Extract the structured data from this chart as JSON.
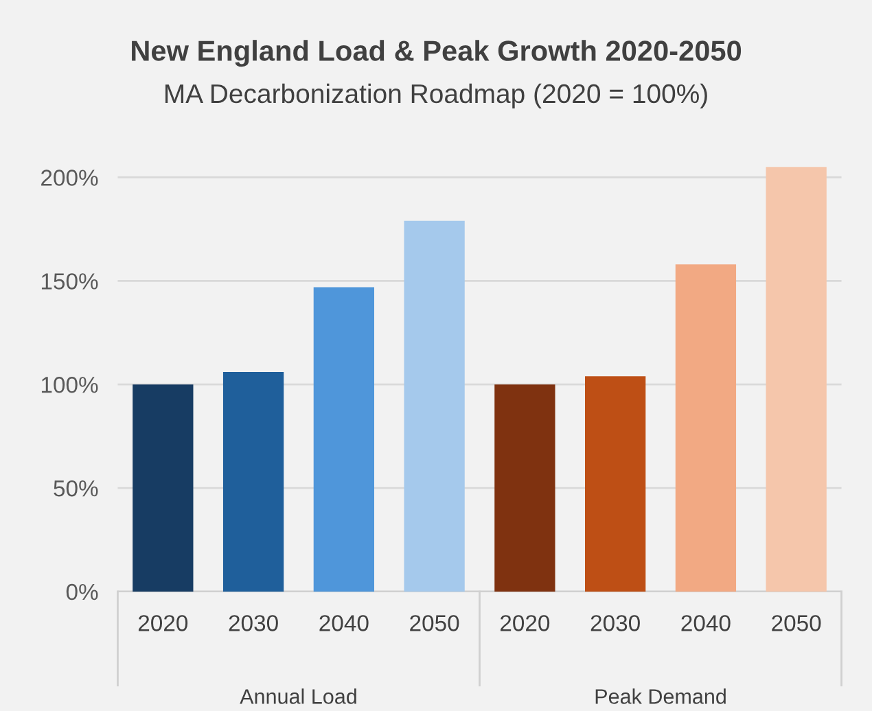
{
  "chart_data": {
    "type": "bar",
    "title": "New England Load & Peak Growth 2020-2050",
    "subtitle": "MA Decarbonization Roadmap (2020 = 100%)",
    "categories": [
      "2020",
      "2030",
      "2040",
      "2050",
      "2020",
      "2030",
      "2040",
      "2050"
    ],
    "values": [
      100,
      106,
      147,
      179,
      100,
      104,
      158,
      205
    ],
    "colors": [
      "#173c63",
      "#1f5f9b",
      "#4f96da",
      "#a5c9ec",
      "#7f3210",
      "#be4f15",
      "#f2a983",
      "#f5c6ab"
    ],
    "annotations": [
      "Annual Load",
      "Peak Demand"
    ],
    "ylim": [
      0,
      206
    ],
    "yticks": [
      {
        "value": 0,
        "label": "0%"
      },
      {
        "value": 50,
        "label": "50%"
      },
      {
        "value": 100,
        "label": "100%"
      },
      {
        "value": 150,
        "label": "150%"
      },
      {
        "value": 200,
        "label": "200%"
      }
    ],
    "grid": "y"
  }
}
